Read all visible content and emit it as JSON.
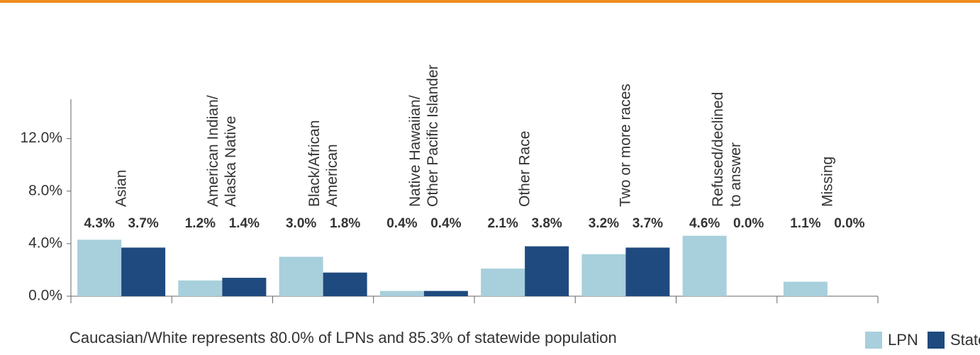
{
  "chart_data": {
    "type": "bar",
    "categories": [
      "Asian",
      "American Indian/\nAlaska Native",
      "Black/African\nAmerican",
      "Native Hawaiian/\nOther Pacific Islander",
      "Other Race",
      "Two or more races",
      "Refused/declined\nto answer",
      "Missing"
    ],
    "series": [
      {
        "name": "LPN",
        "color": "#a8cfdc",
        "values": [
          4.3,
          1.2,
          3.0,
          0.4,
          2.1,
          3.2,
          4.6,
          1.1
        ],
        "value_labels": [
          "4.3%",
          "1.2%",
          "3.0%",
          "0.4%",
          "2.1%",
          "3.2%",
          "4.6%",
          "1.1%"
        ]
      },
      {
        "name": "State",
        "color": "#1f4a7f",
        "values": [
          3.7,
          1.4,
          1.8,
          0.4,
          3.8,
          3.7,
          0.0,
          0.0
        ],
        "value_labels": [
          "3.7%",
          "1.4%",
          "1.8%",
          "0.4%",
          "3.8%",
          "3.7%",
          "0.0%",
          "0.0%"
        ]
      }
    ],
    "ylim": [
      0,
      15
    ],
    "yticks": [
      {
        "value": 0,
        "label": "0.0%"
      },
      {
        "value": 4,
        "label": "4.0%"
      },
      {
        "value": 8,
        "label": "8.0%"
      },
      {
        "value": 12,
        "label": "12.0%"
      }
    ],
    "annotation": "Caucasian/White represents 80.0% of LPNs and 85.3% of statewide population",
    "legend": "bottom-right"
  }
}
